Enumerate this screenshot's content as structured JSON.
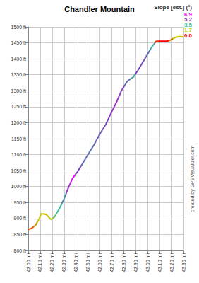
{
  "chart_data": {
    "type": "line",
    "title": "Chandler Mountain",
    "credit": "created by GPSVisualizer.com",
    "x": [
      42.0,
      42.03,
      42.06,
      42.09,
      42.11,
      42.15,
      42.19,
      42.22,
      42.26,
      42.3,
      42.34,
      42.37,
      42.41,
      42.46,
      42.5,
      42.55,
      42.6,
      42.65,
      42.7,
      42.74,
      42.78,
      42.83,
      42.88,
      42.92,
      42.96,
      43.0,
      43.04,
      43.07,
      43.12,
      43.16,
      43.19,
      43.23,
      43.27,
      43.3
    ],
    "values": [
      865,
      870,
      878,
      898,
      915,
      913,
      897,
      905,
      930,
      962,
      1000,
      1025,
      1045,
      1075,
      1100,
      1130,
      1165,
      1195,
      1235,
      1265,
      1300,
      1330,
      1343,
      1365,
      1390,
      1415,
      1440,
      1455,
      1455,
      1455,
      1458,
      1467,
      1470,
      1468
    ],
    "slope": [
      0.6,
      0.8,
      1.2,
      1.7,
      1.7,
      1.6,
      1.9,
      3.0,
      3.5,
      4.2,
      5.6,
      6.5,
      5.2,
      4.6,
      4.5,
      4.6,
      4.8,
      5.0,
      5.4,
      5.6,
      5.2,
      4.6,
      3.8,
      5.2,
      5.0,
      4.6,
      3.6,
      0.4,
      0.0,
      0.0,
      1.0,
      1.7,
      1.7,
      1.5
    ],
    "slope_scale": {
      "title": "Slope [est.] (°)",
      "ticks": [
        6.9,
        5.2,
        3.5,
        1.7,
        {
          "value": 0,
          "label": "0.0"
        }
      ],
      "colors": [
        "#ff00ff",
        "#7f3fbf",
        "#33c0a0",
        "#c8c800",
        "#ff0000"
      ]
    },
    "xlim": [
      42.0,
      43.3
    ],
    "xticks": [
      {
        "value": 42.0,
        "label": "42.00 mi"
      },
      {
        "value": 42.1,
        "label": "42.10 mi"
      },
      {
        "value": 42.2,
        "label": "42.20 mi"
      },
      {
        "value": 42.3,
        "label": "42.30 mi"
      },
      {
        "value": 42.4,
        "label": "42.40 mi"
      },
      {
        "value": 42.5,
        "label": "42.50 mi"
      },
      {
        "value": 42.6,
        "label": "42.60 mi"
      },
      {
        "value": 42.7,
        "label": "42.70 mi"
      },
      {
        "value": 42.8,
        "label": "42.80 mi"
      },
      {
        "value": 42.9,
        "label": "42.90 mi"
      },
      {
        "value": 43.0,
        "label": "43.00 mi"
      },
      {
        "value": 43.1,
        "label": "43.10 mi"
      },
      {
        "value": 43.2,
        "label": "43.20 mi"
      },
      {
        "value": 43.3,
        "label": "43.30 mi"
      }
    ],
    "ylim": [
      800,
      1500
    ],
    "yticks": [
      {
        "value": 800,
        "label": "800 ft"
      },
      {
        "value": 850,
        "label": "850 ft"
      },
      {
        "value": 900,
        "label": "900 ft"
      },
      {
        "value": 950,
        "label": "950 ft"
      },
      {
        "value": 1000,
        "label": "1000 ft"
      },
      {
        "value": 1050,
        "label": "1050 ft"
      },
      {
        "value": 1100,
        "label": "1100 ft"
      },
      {
        "value": 1150,
        "label": "1150 ft"
      },
      {
        "value": 1200,
        "label": "1200 ft"
      },
      {
        "value": 1250,
        "label": "1250 ft"
      },
      {
        "value": 1300,
        "label": "1300 ft"
      },
      {
        "value": 1350,
        "label": "1350 ft"
      },
      {
        "value": 1400,
        "label": "1400 ft"
      },
      {
        "value": 1450,
        "label": "1450 ft"
      },
      {
        "value": 1500,
        "label": "1500 ft"
      }
    ],
    "grid": true
  }
}
